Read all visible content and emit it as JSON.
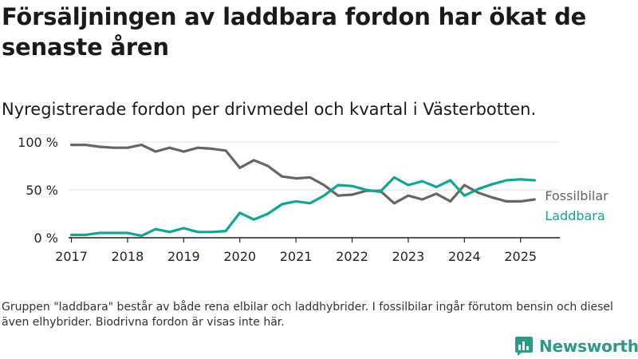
{
  "title": "Försäljningen av laddbara fordon har ökat de senaste åren",
  "subtitle": "Nyregistrerade fordon per drivmedel och kvartal i Västerbotten.",
  "footnote": "Gruppen \"laddbara\" består av både rena elbilar och laddhybrider. I fossilbilar ingår förutom bensin och diesel även elhybrider. Biodrivna fordon är visas inte här.",
  "brand": "Newsworthy",
  "colors": {
    "fossil": "#666666",
    "laddbara": "#12a592",
    "grid": "#e3e3e3",
    "axis": "#222222",
    "brand": "#2b9a8a"
  },
  "chart_data": {
    "type": "line",
    "title": "",
    "xlabel": "",
    "ylabel": "",
    "ylim": [
      0,
      100
    ],
    "xlim": [
      2016.95,
      2025.7
    ],
    "y_ticks": [
      0,
      50,
      100
    ],
    "y_tick_labels": [
      "0 %",
      "50 %",
      "100 %"
    ],
    "x_ticks": [
      2017,
      2018,
      2019,
      2020,
      2021,
      2022,
      2023,
      2024,
      2025
    ],
    "x_tick_labels": [
      "2017",
      "2018",
      "2019",
      "2020",
      "2021",
      "2022",
      "2023",
      "2024",
      "2025"
    ],
    "grid": true,
    "legend": "direct labels at line ends",
    "x": [
      2017.0,
      2017.25,
      2017.5,
      2017.75,
      2018.0,
      2018.25,
      2018.5,
      2018.75,
      2019.0,
      2019.25,
      2019.5,
      2019.75,
      2020.0,
      2020.25,
      2020.5,
      2020.75,
      2021.0,
      2021.25,
      2021.5,
      2021.75,
      2022.0,
      2022.25,
      2022.5,
      2022.75,
      2023.0,
      2023.25,
      2023.5,
      2023.75,
      2024.0,
      2024.25,
      2024.5,
      2024.75,
      2025.0,
      2025.25
    ],
    "series": [
      {
        "name": "Fossilbilar",
        "color": "#666666",
        "values": [
          97,
          97,
          95,
          94,
          94,
          97,
          90,
          94,
          90,
          94,
          93,
          91,
          73,
          81,
          75,
          64,
          62,
          63,
          55,
          44,
          45,
          49,
          49,
          36,
          44,
          40,
          46,
          38,
          55,
          47,
          42,
          38,
          38,
          40
        ]
      },
      {
        "name": "Laddbara",
        "color": "#12a592",
        "values": [
          3,
          3,
          5,
          5,
          5,
          2,
          9,
          6,
          10,
          6,
          6,
          7,
          26,
          19,
          25,
          35,
          38,
          36,
          44,
          55,
          54,
          50,
          48,
          63,
          55,
          59,
          53,
          60,
          44,
          51,
          56,
          60,
          61,
          60
        ]
      }
    ]
  }
}
